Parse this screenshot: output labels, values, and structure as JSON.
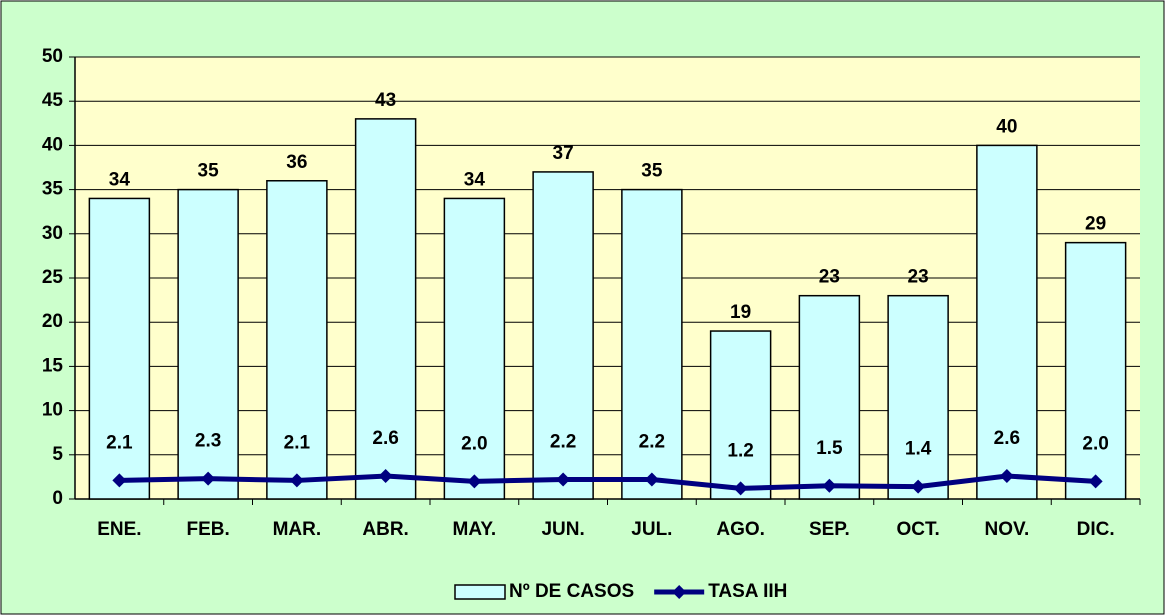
{
  "chart_data": {
    "type": "bar",
    "categories": [
      "ENE.",
      "FEB.",
      "MAR.",
      "ABR.",
      "MAY.",
      "JUN.",
      "JUL.",
      "AGO.",
      "SEP.",
      "OCT.",
      "NOV.",
      "DIC."
    ],
    "series": [
      {
        "name": "Nº DE CASOS",
        "type": "bar",
        "color": "#ccffff",
        "values": [
          34,
          35,
          36,
          43,
          34,
          37,
          35,
          19,
          23,
          23,
          40,
          29
        ]
      },
      {
        "name": "TASA IIH",
        "type": "line",
        "color": "#000080",
        "values": [
          2.1,
          2.3,
          2.1,
          2.6,
          2.0,
          2.2,
          2.2,
          1.2,
          1.5,
          1.4,
          2.6,
          2.0
        ],
        "value_labels": [
          "2.1",
          "2.3",
          "2.1",
          "2.6",
          "2.0",
          "2.2",
          "2.2",
          "1.2",
          "1.5",
          "1.4",
          "2.6",
          "2.0"
        ]
      }
    ],
    "ylim": [
      0,
      50
    ],
    "yticks": [
      0,
      5,
      10,
      15,
      20,
      25,
      30,
      35,
      40,
      45,
      50
    ],
    "grid": true,
    "legend": "bottom"
  }
}
